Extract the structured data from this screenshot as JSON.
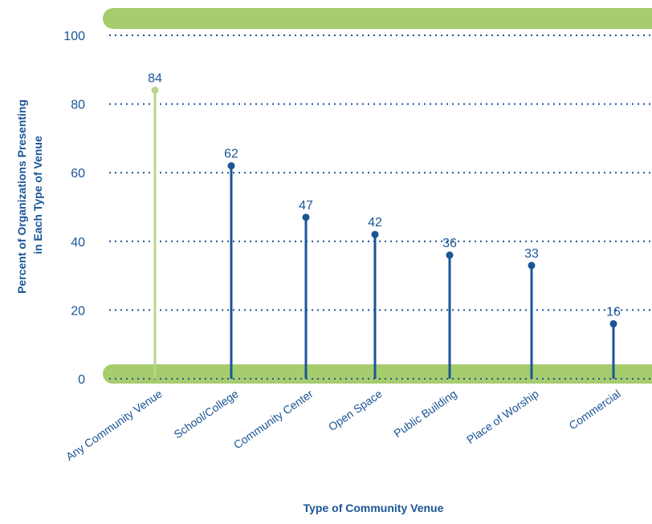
{
  "chart_data": {
    "type": "bar",
    "style": "lollipop",
    "title": "",
    "categories": [
      "Any Community Venue",
      "School/College",
      "Community Center",
      "Open Space",
      "Public Building",
      "Place of Worship",
      "Commercial"
    ],
    "values": [
      84,
      62,
      47,
      42,
      36,
      33,
      16
    ],
    "xlabel": "Type of Community Venue",
    "ylabel_line1": "Percent of Organizations Presenting",
    "ylabel_line2": "in Each Type of Venue",
    "ylim": [
      0,
      100
    ],
    "yticks": [
      "0",
      "20",
      "40",
      "60",
      "80",
      "100"
    ],
    "grid": "horizontal dotted",
    "highlight_category": "Any Community Venue",
    "colors": {
      "highlight": "#b8d58b",
      "series": "#1a5596",
      "band": "#a6cc6e",
      "text": "#1a5596"
    }
  }
}
